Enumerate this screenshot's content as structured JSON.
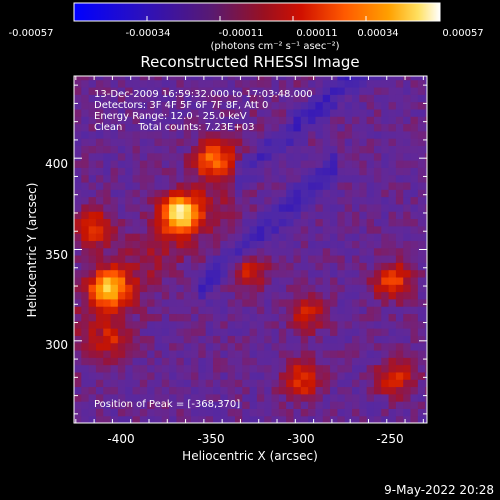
{
  "chart_data": {
    "type": "heatmap",
    "title": "Reconstructed RHESSI Image",
    "xlabel": "Heliocentric X (arcsec)",
    "ylabel": "Heliocentric Y (arcsec)",
    "xlim": [
      -426,
      -233
    ],
    "ylim": [
      255,
      445
    ],
    "x_ticks": [
      -400,
      -350,
      -300,
      -250
    ],
    "y_ticks": [
      300,
      350,
      400
    ],
    "x_tick_labels": [
      "-400",
      "-350",
      "-300",
      "-250"
    ],
    "y_tick_labels": [
      "300",
      "350",
      "400"
    ],
    "colormap": [
      "#0000ff",
      "#4b2da8",
      "#6b2bb0",
      "#a02060",
      "#c81800",
      "#ff4400",
      "#ff9900",
      "#ffe060",
      "#ffffff"
    ],
    "colorbar": {
      "range": [
        -0.00057,
        0.00057
      ],
      "tick_labels": [
        "-0.00057",
        "-0.00034",
        "-0.00011",
        "0.00011",
        "0.00034",
        "0.00057"
      ],
      "unit": "(photons cm⁻² s⁻¹ asec⁻²)"
    },
    "annotations": [
      "13-Dec-2009 16:59:32.000 to 17:03:48.000",
      "Detectors: 3F 4F 5F 6F 7F 8F, Att 0",
      "Energy Range: 12.0 - 25.0 keV",
      "Clean     Total counts: 7.23E+03"
    ],
    "peak_label": "Position of Peak = [-368,370]",
    "peak": {
      "x": -368,
      "y": 370,
      "value": 0.00057
    },
    "sources": [
      {
        "x": -368,
        "y": 370,
        "value": 0.00057
      },
      {
        "x": -407,
        "y": 329,
        "value": 0.00044
      },
      {
        "x": -350,
        "y": 400,
        "value": 0.0003
      },
      {
        "x": -415,
        "y": 362,
        "value": 0.00022
      },
      {
        "x": -252,
        "y": 333,
        "value": 0.00025
      },
      {
        "x": -302,
        "y": 279,
        "value": 0.00022
      },
      {
        "x": -250,
        "y": 280,
        "value": 0.0002
      },
      {
        "x": -330,
        "y": 338,
        "value": 0.00016
      },
      {
        "x": -298,
        "y": 315,
        "value": 0.00014
      },
      {
        "x": -406,
        "y": 300,
        "value": 0.00012
      }
    ]
  },
  "footer": {
    "date": "9-May-2022 20:28"
  }
}
